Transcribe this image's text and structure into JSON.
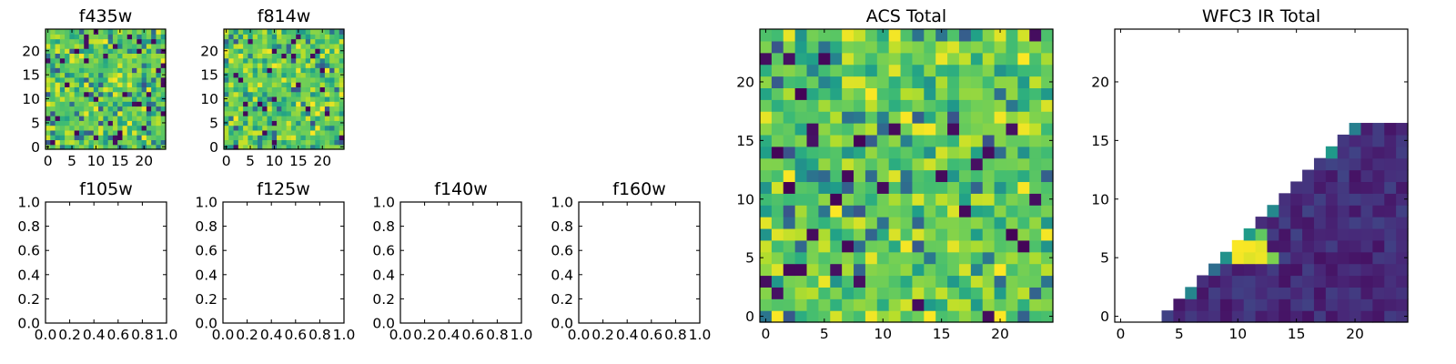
{
  "chart_data": [
    {
      "type": "heatmap",
      "title": "f435w",
      "grid_size": 25,
      "xticks": [
        0,
        5,
        10,
        15,
        20
      ],
      "yticks": [
        0,
        5,
        10,
        15,
        20
      ],
      "xlim": [
        -0.5,
        24.5
      ],
      "ylim": [
        -0.5,
        24.5
      ],
      "colormap": "viridis",
      "pattern": "random noise, mostly green-yellow with scattered dark pixels",
      "seed": 435
    },
    {
      "type": "heatmap",
      "title": "f814w",
      "grid_size": 25,
      "xticks": [
        0,
        5,
        10,
        15,
        20
      ],
      "yticks": [
        0,
        5,
        10,
        15,
        20
      ],
      "xlim": [
        -0.5,
        24.5
      ],
      "ylim": [
        -0.5,
        24.5
      ],
      "colormap": "viridis",
      "pattern": "random noise, mostly green-yellow with scattered dark pixels",
      "seed": 814
    },
    {
      "type": "empty",
      "title": "f105w",
      "xticks": [
        "0.0",
        "0.2",
        "0.4",
        "0.6",
        "0.8",
        "1.0"
      ],
      "yticks": [
        "0.0",
        "0.2",
        "0.4",
        "0.6",
        "0.8",
        "1.0"
      ],
      "xlim": [
        0,
        1
      ],
      "ylim": [
        0,
        1
      ]
    },
    {
      "type": "empty",
      "title": "f125w",
      "xticks": [
        "0.0",
        "0.2",
        "0.4",
        "0.6",
        "0.8",
        "1.0"
      ],
      "yticks": [
        "0.0",
        "0.2",
        "0.4",
        "0.6",
        "0.8",
        "1.0"
      ],
      "xlim": [
        0,
        1
      ],
      "ylim": [
        0,
        1
      ]
    },
    {
      "type": "empty",
      "title": "f140w",
      "xticks": [
        "0.0",
        "0.2",
        "0.4",
        "0.6",
        "0.8",
        "1.0"
      ],
      "yticks": [
        "0.0",
        "0.2",
        "0.4",
        "0.6",
        "0.8",
        "1.0"
      ],
      "xlim": [
        0,
        1
      ],
      "ylim": [
        0,
        1
      ]
    },
    {
      "type": "empty",
      "title": "f160w",
      "xticks": [
        "0.0",
        "0.2",
        "0.4",
        "0.6",
        "0.8",
        "1.0"
      ],
      "yticks": [
        "0.0",
        "0.2",
        "0.4",
        "0.6",
        "0.8",
        "1.0"
      ],
      "xlim": [
        0,
        1
      ],
      "ylim": [
        0,
        1
      ]
    },
    {
      "type": "heatmap",
      "title": "ACS Total",
      "grid_size": 25,
      "xticks": [
        0,
        5,
        10,
        15,
        20
      ],
      "yticks": [
        0,
        5,
        10,
        15,
        20
      ],
      "xlim": [
        -0.5,
        24.5
      ],
      "ylim": [
        -0.5,
        24.5
      ],
      "colormap": "viridis",
      "pattern": "random noise, mostly green-yellow with scattered dark pixels",
      "seed": 1234
    },
    {
      "type": "heatmap",
      "title": "WFC3 IR Total",
      "grid_size": 25,
      "xticks": [
        0,
        5,
        10,
        15,
        20
      ],
      "yticks": [
        0,
        5,
        10,
        15,
        20
      ],
      "xlim": [
        -0.5,
        24.5
      ],
      "ylim": [
        -0.5,
        24.5
      ],
      "colormap": "viridis",
      "pattern": "lower-right triangle filled (x - y >= 4, y <= 16), mostly dark purple, bright yellow/green pixels along the diagonal near x=10-13, y=5-7; remainder blank (white)",
      "seed": 999
    }
  ]
}
